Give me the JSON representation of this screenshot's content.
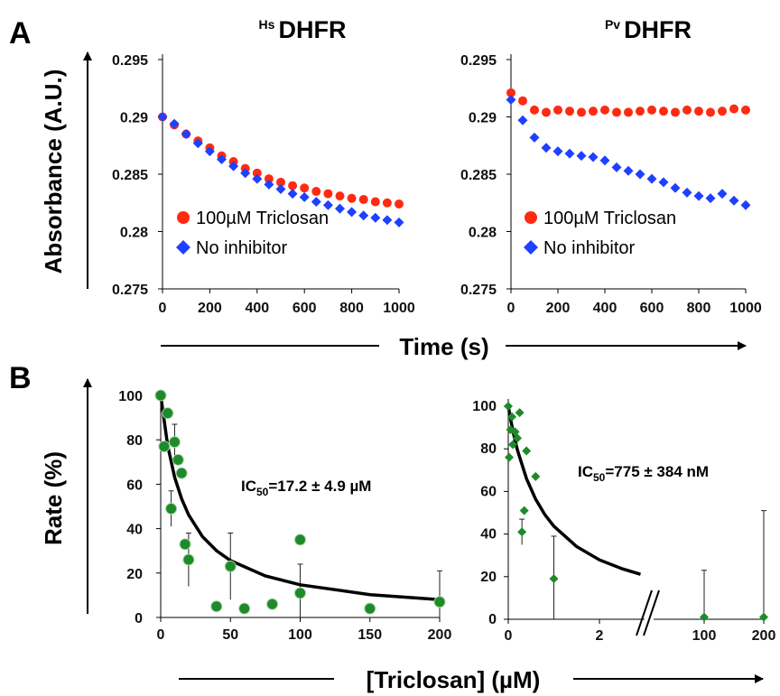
{
  "panel_labels": {
    "a": "A",
    "b": "B"
  },
  "shared_axes": {
    "absorbance_label": "Absorbance (A.U.)",
    "time_label": "Time (s)",
    "rate_label": "Rate (%)",
    "triclosan_label": "[Triclosan] (µM)"
  },
  "colors": {
    "triclosan": "#ff2a12",
    "no_inhibitor": "#1f40ff",
    "inhibition": "#1f8a2a",
    "fit": "#000000"
  },
  "chart_data": [
    {
      "type": "scatter",
      "title_sup": "Hs",
      "title": "DHFR",
      "xlabel": "Time (s)",
      "ylabel": "Absorbance (A.U.)",
      "xlim": [
        0,
        1000
      ],
      "ylim": [
        0.275,
        0.295
      ],
      "xticks": [
        "0",
        "200",
        "400",
        "600",
        "800",
        "1000"
      ],
      "yticks": [
        "0.295",
        "0.29",
        "0.285",
        "0.28",
        "0.275"
      ],
      "legend_position": "lower-left",
      "series": [
        {
          "name": "100µM Triclosan",
          "marker": "circle",
          "x": [
            0,
            50,
            100,
            150,
            200,
            250,
            300,
            350,
            400,
            450,
            500,
            550,
            600,
            650,
            700,
            750,
            800,
            850,
            900,
            950,
            1000
          ],
          "y": [
            0.29,
            0.2893,
            0.2885,
            0.2879,
            0.2873,
            0.2866,
            0.2861,
            0.2855,
            0.2851,
            0.2846,
            0.2843,
            0.284,
            0.2838,
            0.2835,
            0.2833,
            0.2831,
            0.2829,
            0.2828,
            0.2826,
            0.2825,
            0.2824
          ]
        },
        {
          "name": "No inhibitor",
          "marker": "diamond",
          "x": [
            0,
            50,
            100,
            150,
            200,
            250,
            300,
            350,
            400,
            450,
            500,
            550,
            600,
            650,
            700,
            750,
            800,
            850,
            900,
            950,
            1000
          ],
          "y": [
            0.29,
            0.2894,
            0.2885,
            0.2877,
            0.287,
            0.2863,
            0.2857,
            0.2851,
            0.2846,
            0.2841,
            0.2837,
            0.2833,
            0.283,
            0.2826,
            0.2823,
            0.282,
            0.2817,
            0.2814,
            0.2812,
            0.281,
            0.2808
          ]
        }
      ]
    },
    {
      "type": "scatter",
      "title_sup": "Pv",
      "title": "DHFR",
      "xlabel": "Time (s)",
      "ylabel": "Absorbance (A.U.)",
      "xlim": [
        0,
        1000
      ],
      "ylim": [
        0.275,
        0.295
      ],
      "xticks": [
        "0",
        "200",
        "400",
        "600",
        "800",
        "1000"
      ],
      "yticks": [
        "0.295",
        "0.29",
        "0.285",
        "0.28",
        "0.275"
      ],
      "legend_position": "lower-left",
      "series": [
        {
          "name": "100µM Triclosan",
          "marker": "circle",
          "x": [
            0,
            50,
            100,
            150,
            200,
            250,
            300,
            350,
            400,
            450,
            500,
            550,
            600,
            650,
            700,
            750,
            800,
            850,
            900,
            950,
            1000
          ],
          "y": [
            0.2921,
            0.2914,
            0.2906,
            0.2904,
            0.2906,
            0.2905,
            0.2904,
            0.2905,
            0.2906,
            0.2904,
            0.2904,
            0.2905,
            0.2906,
            0.2905,
            0.2904,
            0.2906,
            0.2905,
            0.2904,
            0.2905,
            0.2907,
            0.2906
          ]
        },
        {
          "name": "No inhibitor",
          "marker": "diamond",
          "x": [
            0,
            50,
            100,
            150,
            200,
            250,
            300,
            350,
            400,
            450,
            500,
            550,
            600,
            650,
            700,
            750,
            800,
            850,
            900,
            950,
            1000
          ],
          "y": [
            0.2915,
            0.2897,
            0.2882,
            0.2873,
            0.287,
            0.2868,
            0.2866,
            0.2865,
            0.2862,
            0.2856,
            0.2853,
            0.285,
            0.2846,
            0.2843,
            0.2838,
            0.2834,
            0.2831,
            0.2829,
            0.2833,
            0.2827,
            0.2823
          ]
        }
      ]
    },
    {
      "type": "scatter",
      "xlabel": "[Triclosan] (µM)",
      "ylabel": "Rate (%)",
      "xlim": [
        0,
        200
      ],
      "ylim": [
        0,
        100
      ],
      "xticks": [
        "0",
        "50",
        "100",
        "150",
        "200"
      ],
      "yticks": [
        "100",
        "80",
        "60",
        "40",
        "20",
        "0"
      ],
      "annotation": {
        "pre": "IC",
        "sub": "50",
        "post": "=17.2 ± 4.9 µM"
      },
      "series": [
        {
          "marker": "circle",
          "x": [
            0,
            2.5,
            5,
            7.5,
            10,
            12.5,
            15,
            17.5,
            20,
            40,
            50,
            60,
            80,
            100,
            100,
            150,
            200
          ],
          "y": [
            100,
            77,
            92,
            49,
            79,
            71,
            65,
            33,
            26,
            5,
            23,
            4,
            6,
            35,
            11,
            4,
            7
          ],
          "err": [
            0,
            0,
            0,
            8,
            8,
            0,
            0,
            0,
            12,
            0,
            15,
            0,
            0,
            0,
            13,
            0,
            14
          ]
        },
        {
          "type": "line",
          "x": [
            0,
            5,
            10,
            15,
            20,
            30,
            40,
            50,
            75,
            100,
            150,
            200
          ],
          "y": [
            100,
            77.5,
            63.2,
            53.4,
            46.2,
            36.4,
            30.1,
            25.6,
            18.7,
            14.7,
            10.3,
            8.0
          ]
        }
      ]
    },
    {
      "type": "scatter",
      "xlabel": "[Triclosan] (µM)",
      "ylabel": "Rate (%)",
      "ylim": [
        0,
        100
      ],
      "xticks": [
        "0",
        "2",
        "100",
        "200"
      ],
      "yticks": [
        "100",
        "80",
        "60",
        "40",
        "20",
        "0"
      ],
      "axis_break": true,
      "annotation": {
        "pre": "IC",
        "sub": "50",
        "post": "=775 ± 384 nM"
      },
      "series": [
        {
          "marker": "diamond",
          "x": [
            0,
            0.02,
            0.05,
            0.08,
            0.1,
            0.15,
            0.2,
            0.25,
            0.3,
            0.35,
            0.4,
            0.6,
            1.0,
            100,
            200
          ],
          "y": [
            100,
            76,
            89,
            95,
            82,
            88,
            85,
            97,
            41,
            51,
            79,
            67,
            19,
            1,
            1
          ],
          "err": [
            0,
            0,
            0,
            0,
            0,
            0,
            0,
            0,
            6,
            0,
            0,
            0,
            20,
            22,
            50
          ]
        },
        {
          "type": "line",
          "x": [
            0,
            0.1,
            0.2,
            0.4,
            0.6,
            0.8,
            1.0,
            1.5,
            2.0,
            2.5,
            2.9
          ],
          "y": [
            100,
            88.6,
            79.5,
            66.0,
            56.4,
            49.2,
            43.7,
            34.1,
            27.9,
            23.7,
            21.1
          ]
        }
      ]
    }
  ]
}
